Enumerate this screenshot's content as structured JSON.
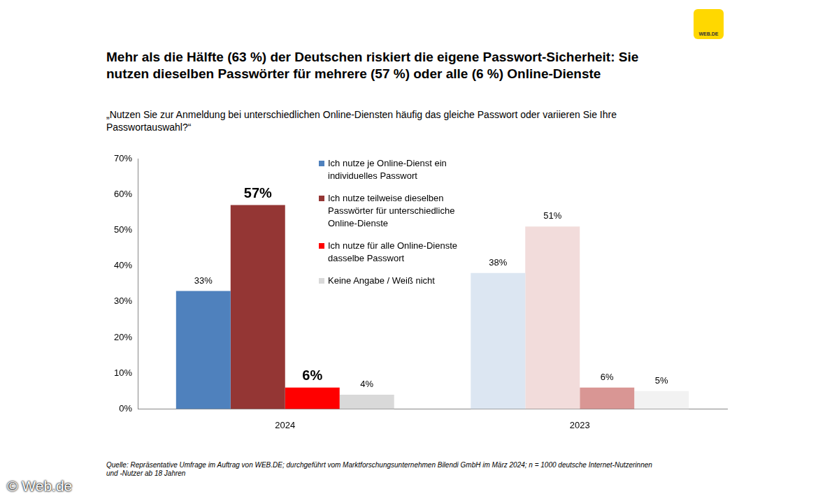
{
  "chart_data": {
    "type": "bar",
    "title": "Mehr als die Hälfte (63 %) der Deutschen riskiert die eigene Passwort-Sicherheit: Sie nutzen dieselben Passwörter für mehrere (57 %) oder alle (6 %) Online-Dienste",
    "subtitle": "„Nutzen Sie zur Anmeldung bei unterschiedlichen Online-Diensten häufig das gleiche Passwort oder variieren Sie Ihre Passwortauswahl?“",
    "categories": [
      "2024",
      "2023"
    ],
    "series": [
      {
        "name": "Ich nutze je Online-Dienst ein individuelles Passwort",
        "colors": [
          "#4f81bd",
          "#dce6f2"
        ],
        "values": [
          33,
          38
        ],
        "value_labels": [
          "33%",
          "38%"
        ]
      },
      {
        "name": "Ich nutze teilweise dieselben Passwörter für unterschiedliche Online-Dienste",
        "colors": [
          "#943634",
          "#f2dcdb"
        ],
        "values": [
          57,
          51
        ],
        "value_labels": [
          "57%",
          "51%"
        ]
      },
      {
        "name": "Ich nutze für alle Online-Dienste dasselbe Passwort",
        "colors": [
          "#ff0000",
          "#d99694"
        ],
        "values": [
          6,
          6
        ],
        "value_labels": [
          "6%",
          "6%"
        ]
      },
      {
        "name": "Keine Angabe / Weiß nicht",
        "colors": [
          "#d9d9d9",
          "#f2f2f2"
        ],
        "values": [
          4,
          5
        ],
        "value_labels": [
          "4%",
          "5%"
        ]
      }
    ],
    "ylim": [
      0,
      70
    ],
    "yticks": [
      {
        "value": 0,
        "label": "0%"
      },
      {
        "value": 10,
        "label": "10%"
      },
      {
        "value": 20,
        "label": "20%"
      },
      {
        "value": 30,
        "label": "30%"
      },
      {
        "value": 40,
        "label": "40%"
      },
      {
        "value": 50,
        "label": "50%"
      },
      {
        "value": 60,
        "label": "60%"
      },
      {
        "value": 70,
        "label": "70%"
      }
    ],
    "grid": false,
    "legend": "top",
    "data_labels": true,
    "annotations": [
      "Quelle: Repräsentative Umfrage im Auftrag von WEB.DE; durchgeführt vom Marktforschungsunternehmen Bilendi GmbH im März 2024; n = 1000 deutsche Internet-Nutzerinnen und -Nutzer ab 18 Jahren",
      "© Web.de",
      "WEB.DE"
    ]
  }
}
